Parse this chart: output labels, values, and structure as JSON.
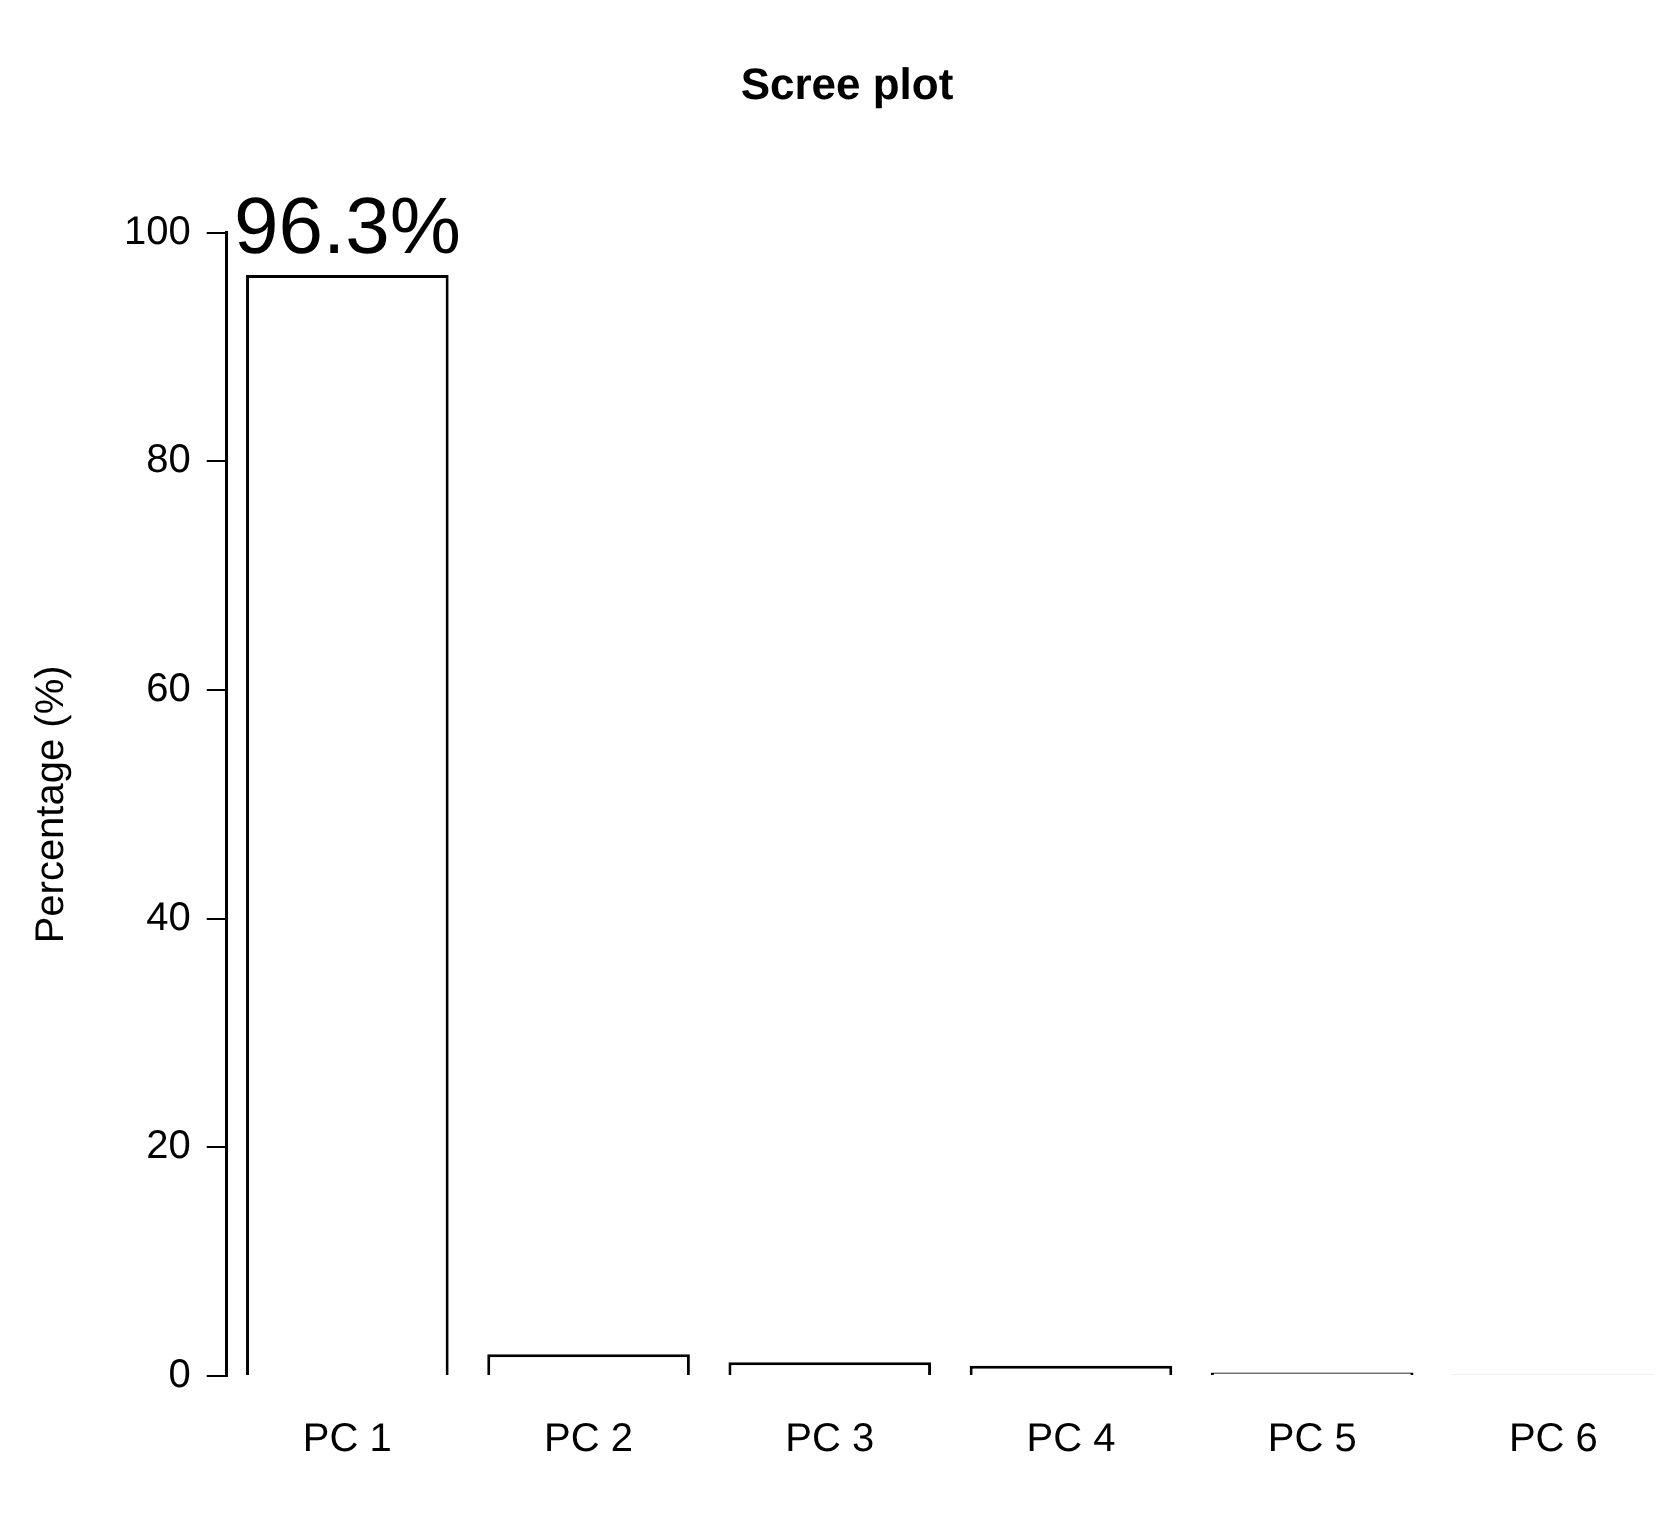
{
  "chart_data": {
    "type": "bar",
    "title": "Scree plot",
    "ylabel": "Percentage (%)",
    "categories": [
      "PC 1",
      "PC 2",
      "PC 3",
      "PC 4",
      "PC 5",
      "PC 6"
    ],
    "values": [
      96.3,
      1.9,
      1.2,
      0.9,
      0.3,
      0.1
    ],
    "value_labels": [
      "96.3%",
      null,
      null,
      null,
      null,
      null
    ],
    "color": "#ffffff",
    "ylim": [
      0,
      100
    ],
    "yticks": [
      0,
      20,
      40,
      60,
      80,
      100
    ],
    "grid": false,
    "legend": false
  }
}
